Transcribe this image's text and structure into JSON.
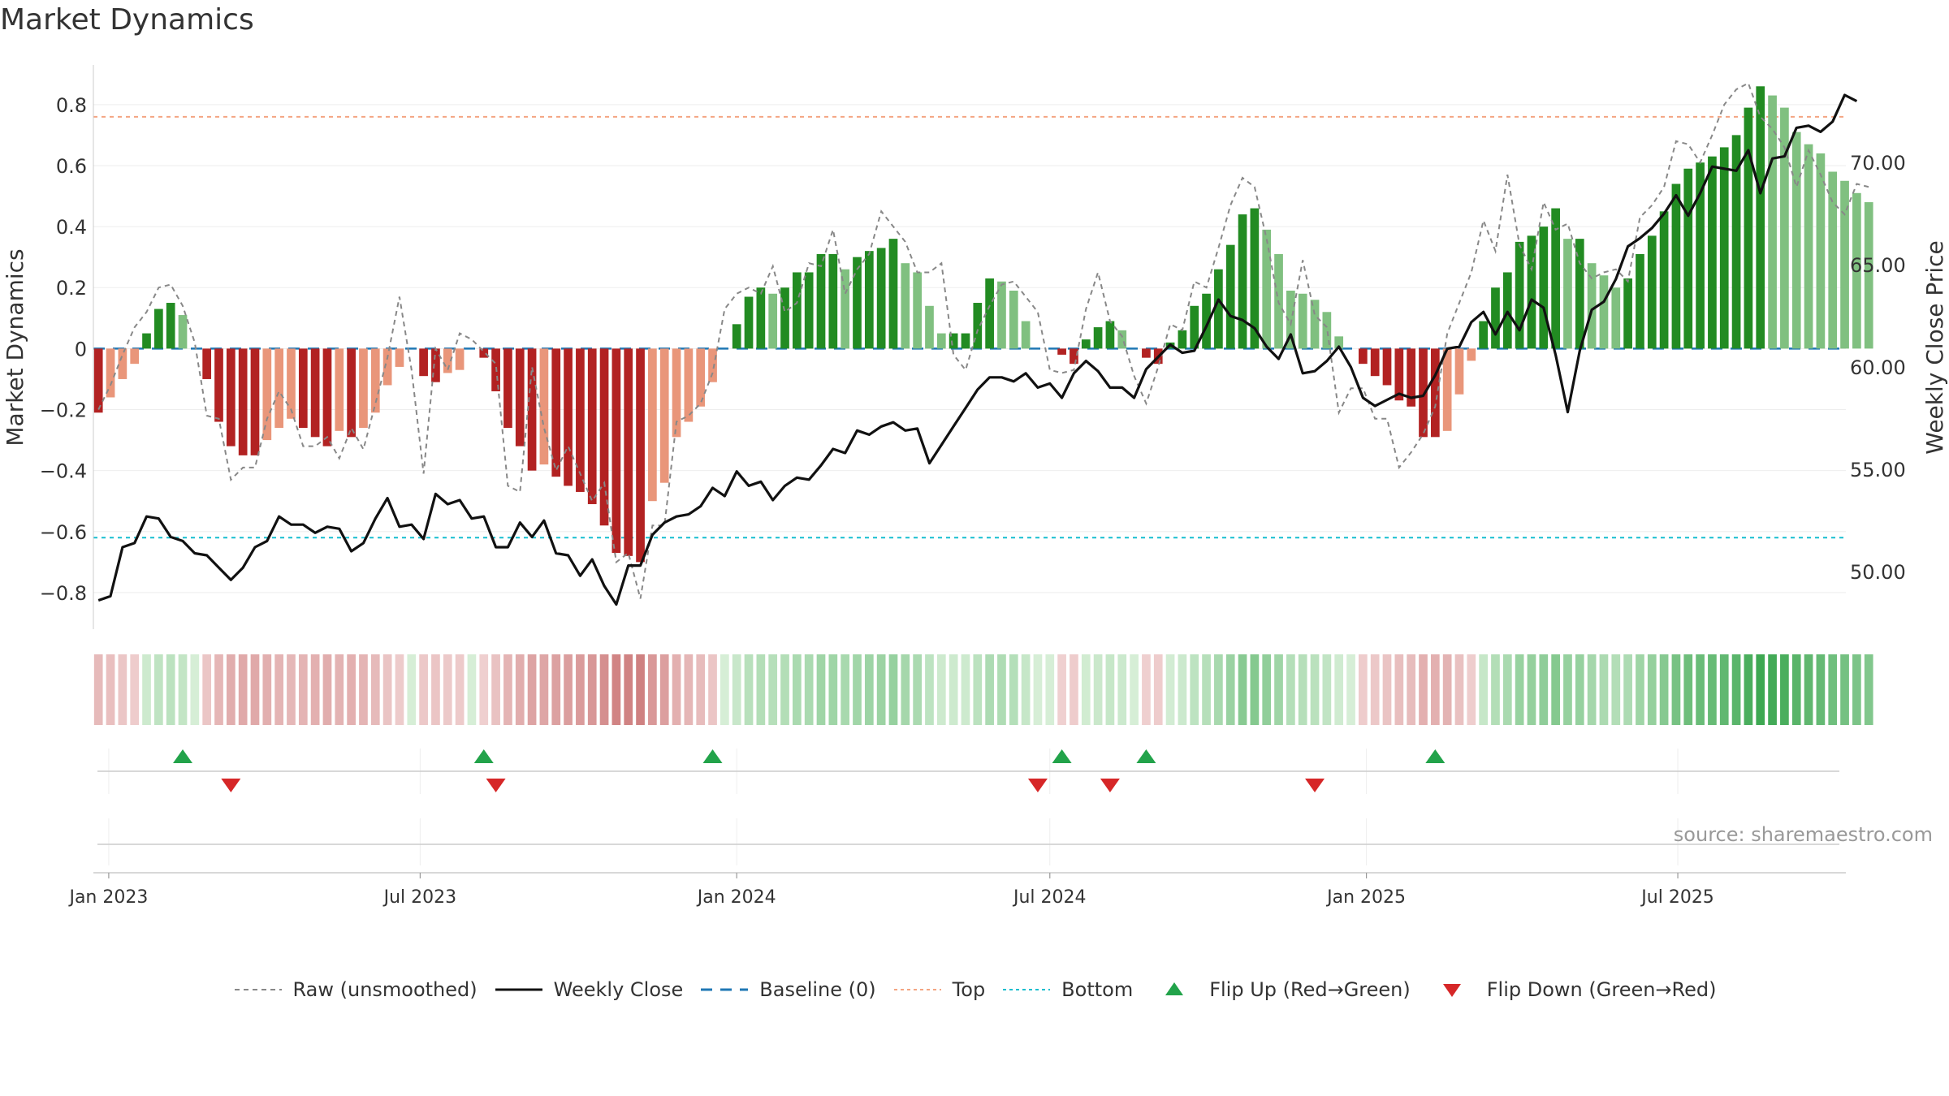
{
  "title": "Market Dynamics",
  "source": "source: sharemaestro.com",
  "legend": [
    {
      "label": "Raw (unsmoothed)",
      "icon": "dashed-gray-line",
      "color": "#888888"
    },
    {
      "label": "Weekly Close",
      "icon": "solid-black-line",
      "color": "#111111"
    },
    {
      "label": "Baseline (0)",
      "icon": "dashed-blue-line",
      "color": "#1f77b4"
    },
    {
      "label": "Top",
      "icon": "dotted-orange-line",
      "color": "#f4a582"
    },
    {
      "label": "Bottom",
      "icon": "dotted-cyan-line",
      "color": "#17becf"
    },
    {
      "label": "Flip Up (Red→Green)",
      "icon": "green-up-triangle",
      "color": "#22a34a"
    },
    {
      "label": "Flip Down (Green→Red)",
      "icon": "red-down-triangle",
      "color": "#d62728"
    }
  ],
  "chart_data": {
    "type": "bar",
    "title": "Market Dynamics",
    "ylabel": "Market Dynamics",
    "y2label": "Weekly Close Price",
    "ylim": [
      -0.92,
      0.93
    ],
    "y2lim": [
      48.5,
      73.5
    ],
    "x_start": "2022-12-26",
    "x_ticks": [
      "Jan 2023",
      "Jul 2023",
      "Jan 2024",
      "Jul 2024",
      "Jan 2025",
      "Jul 2025"
    ],
    "y_ticks": [
      "0.8",
      "0.6",
      "0.4",
      "0.2",
      "0",
      "−0.2",
      "−0.4",
      "−0.6",
      "−0.8"
    ],
    "y2_ticks": [
      "70.00",
      "65.00",
      "60.00",
      "55.00",
      "50.00"
    ],
    "top_level": 0.76,
    "bottom_level": -0.62,
    "baseline": 0,
    "grid": true,
    "legend_position": "bottom",
    "colors": {
      "up_strong": "#228b22",
      "up_weak": "#80c080",
      "down_strong": "#b22222",
      "down_weak": "#e9967a",
      "raw": "#888888",
      "close": "#111111",
      "baseline": "#1f77b4",
      "top": "#f4a582",
      "bottom": "#17becf"
    },
    "series": [
      {
        "name": "Market Dynamics",
        "values": [
          -0.21,
          -0.16,
          -0.1,
          -0.05,
          0.05,
          0.13,
          0.15,
          0.11,
          0,
          -0.1,
          -0.24,
          -0.32,
          -0.35,
          -0.35,
          -0.3,
          -0.26,
          -0.23,
          -0.26,
          -0.29,
          -0.32,
          -0.27,
          -0.29,
          -0.26,
          -0.21,
          -0.12,
          -0.06,
          0,
          -0.09,
          -0.11,
          -0.08,
          -0.07,
          0,
          -0.03,
          -0.14,
          -0.26,
          -0.32,
          -0.4,
          -0.38,
          -0.42,
          -0.45,
          -0.47,
          -0.51,
          -0.58,
          -0.67,
          -0.68,
          -0.7,
          -0.5,
          -0.44,
          -0.29,
          -0.24,
          -0.19,
          -0.11,
          0,
          0.08,
          0.17,
          0.2,
          0.18,
          0.2,
          0.25,
          0.25,
          0.31,
          0.31,
          0.26,
          0.3,
          0.32,
          0.33,
          0.36,
          0.28,
          0.25,
          0.14,
          0.05,
          0.05,
          0.05,
          0.15,
          0.23,
          0.22,
          0.19,
          0.09,
          0,
          0,
          -0.02,
          -0.05,
          0.03,
          0.07,
          0.09,
          0.06,
          0,
          -0.03,
          -0.05,
          0.02,
          0.06,
          0.14,
          0.18,
          0.26,
          0.34,
          0.44,
          0.46,
          0.39,
          0.31,
          0.19,
          0.18,
          0.16,
          0.12,
          0.04,
          0,
          -0.05,
          -0.09,
          -0.12,
          -0.17,
          -0.19,
          -0.29,
          -0.29,
          -0.27,
          -0.15,
          -0.04,
          0.09,
          0.2,
          0.25,
          0.35,
          0.37,
          0.4,
          0.46,
          0.36,
          0.36,
          0.28,
          0.24,
          0.2,
          0.23,
          0.31,
          0.37,
          0.45,
          0.54,
          0.59,
          0.61,
          0.63,
          0.66,
          0.7,
          0.79,
          0.86,
          0.83,
          0.79,
          0.71,
          0.67,
          0.64,
          0.58,
          0.55,
          0.51,
          0.48
        ]
      },
      {
        "name": "Raw (unsmoothed)",
        "values": [
          -0.2,
          -0.12,
          -0.02,
          0.07,
          0.12,
          0.2,
          0.21,
          0.14,
          0.02,
          -0.22,
          -0.23,
          -0.43,
          -0.39,
          -0.39,
          -0.23,
          -0.14,
          -0.2,
          -0.32,
          -0.32,
          -0.29,
          -0.36,
          -0.26,
          -0.33,
          -0.18,
          -0.03,
          0.17,
          -0.07,
          -0.41,
          0,
          -0.07,
          0.05,
          0.03,
          -0.01,
          -0.05,
          -0.45,
          -0.47,
          -0.06,
          -0.26,
          -0.4,
          -0.32,
          -0.41,
          -0.5,
          -0.44,
          -0.7,
          -0.67,
          -0.82,
          -0.58,
          -0.58,
          -0.24,
          -0.22,
          -0.18,
          -0.08,
          0.13,
          0.18,
          0.2,
          0.18,
          0.27,
          0.12,
          0.15,
          0.28,
          0.27,
          0.39,
          0.18,
          0.26,
          0.31,
          0.45,
          0.4,
          0.35,
          0.25,
          0.25,
          0.28,
          -0.02,
          -0.07,
          0.06,
          0.14,
          0.21,
          0.22,
          0.17,
          0.12,
          -0.07,
          -0.08,
          -0.07,
          0.13,
          0.25,
          0.09,
          0.04,
          -0.09,
          -0.18,
          -0.06,
          0.08,
          0.06,
          0.22,
          0.2,
          0.33,
          0.47,
          0.56,
          0.53,
          0.36,
          0.15,
          0.08,
          0.29,
          0.11,
          0.07,
          -0.21,
          -0.13,
          -0.13,
          -0.23,
          -0.23,
          -0.39,
          -0.34,
          -0.28,
          -0.19,
          0.05,
          0.15,
          0.25,
          0.42,
          0.32,
          0.57,
          0.34,
          0.26,
          0.48,
          0.39,
          0.41,
          0.28,
          0.23,
          0.25,
          0.26,
          0.22,
          0.43,
          0.47,
          0.53,
          0.68,
          0.67,
          0.61,
          0.7,
          0.8,
          0.85,
          0.87,
          0.76,
          0.72,
          0.66,
          0.53,
          0.65,
          0.57,
          0.48,
          0.44,
          0.54,
          0.53
        ]
      },
      {
        "name": "Weekly Close",
        "values": [
          48.6,
          48.8,
          51.2,
          51.4,
          52.7,
          52.6,
          51.7,
          51.5,
          50.9,
          50.8,
          50.2,
          49.6,
          50.2,
          51.2,
          51.5,
          52.7,
          52.3,
          52.3,
          51.9,
          52.2,
          52.1,
          51.0,
          51.4,
          52.6,
          53.6,
          52.2,
          52.3,
          51.6,
          53.8,
          53.3,
          53.5,
          52.6,
          52.7,
          51.2,
          51.2,
          52.4,
          51.7,
          52.5,
          50.9,
          50.8,
          49.8,
          50.6,
          49.3,
          48.4,
          50.3,
          50.3,
          51.8,
          52.4,
          52.7,
          52.8,
          53.2,
          54.1,
          53.7,
          54.9,
          54.2,
          54.4,
          53.5,
          54.2,
          54.6,
          54.5,
          55.2,
          56.0,
          55.8,
          56.9,
          56.7,
          57.1,
          57.3,
          56.9,
          57.0,
          55.3,
          56.2,
          57.1,
          58.0,
          58.9,
          59.5,
          59.5,
          59.3,
          59.7,
          59.0,
          59.2,
          58.5,
          59.7,
          60.3,
          59.8,
          59.0,
          59.0,
          58.5,
          59.9,
          60.5,
          61.1,
          60.7,
          60.8,
          62.0,
          63.3,
          62.5,
          62.3,
          61.9,
          61.0,
          60.4,
          61.6,
          59.7,
          59.8,
          60.3,
          61.0,
          60.0,
          58.5,
          58.1,
          58.4,
          58.7,
          58.5,
          58.6,
          59.6,
          60.9,
          61.0,
          62.2,
          62.7,
          61.6,
          62.7,
          61.8,
          63.3,
          62.9,
          60.6,
          57.8,
          60.8,
          62.8,
          63.2,
          64.3,
          65.9,
          66.3,
          66.8,
          67.5,
          68.4,
          67.4,
          68.5,
          69.8,
          69.7,
          69.6,
          70.6,
          68.5,
          70.2,
          70.3,
          71.7,
          71.8,
          71.5,
          72.0,
          73.3,
          73.0
        ]
      },
      {
        "name": "Flip Up (Red→Green)",
        "x": [
          "2023-02-13",
          "2023-08-07",
          "2023-12-18",
          "2024-07-08",
          "2024-08-26",
          "2025-02-10"
        ]
      },
      {
        "name": "Flip Down (Green→Red)",
        "x": [
          "2023-03-13",
          "2023-08-14",
          "2024-06-24",
          "2024-08-05",
          "2024-12-02"
        ]
      }
    ]
  }
}
